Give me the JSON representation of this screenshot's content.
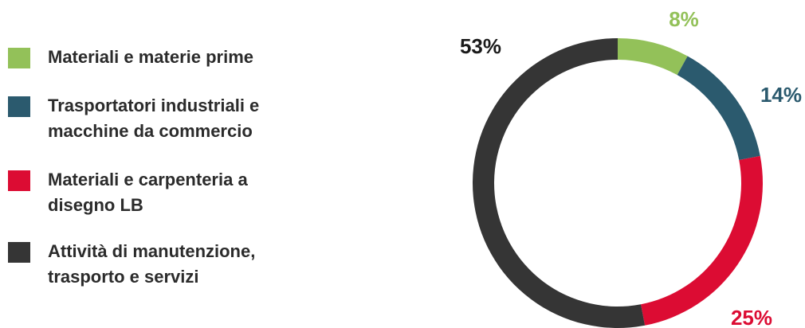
{
  "chart_data": {
    "type": "pie",
    "donut": true,
    "categories": [
      "Materiali e materie prime",
      "Trasportatori industriali e\nmacchine da commercio",
      "Materiali e carpenteria a\ndisegno LB",
      "Attività di manutenzione,\ntrasporto e servizi"
    ],
    "values": [
      8,
      14,
      25,
      53
    ],
    "value_labels": [
      "8%",
      "14%",
      "25%",
      "53%"
    ],
    "colors": [
      "#93c159",
      "#2b5a6e",
      "#dc0c33",
      "#353535"
    ],
    "label_colors": [
      "#93c159",
      "#2b5a6e",
      "#dc0c33",
      "#1a1a1a"
    ],
    "legend_position": "left",
    "start_angle": "top",
    "direction": "clockwise"
  }
}
